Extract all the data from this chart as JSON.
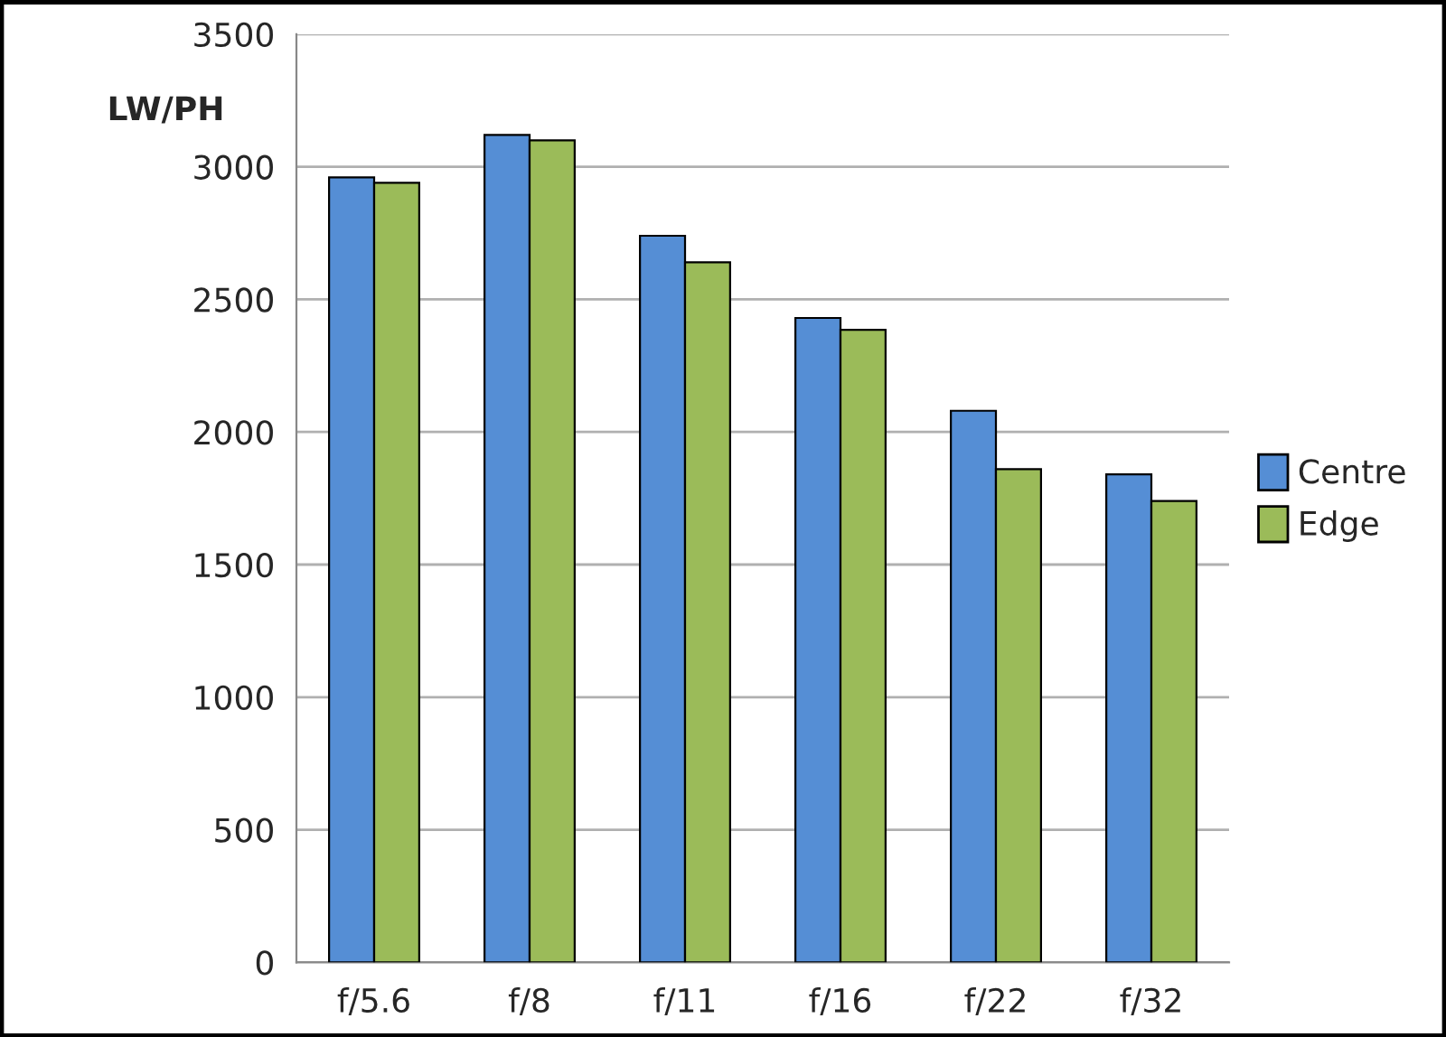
{
  "chart_data": {
    "type": "bar",
    "ylabel": "LW/PH",
    "categories": [
      "f/5.6",
      "f/8",
      "f/11",
      "f/16",
      "f/22",
      "f/32"
    ],
    "series": [
      {
        "name": "Centre",
        "color": "#558ed5",
        "values": [
          2960,
          3120,
          2740,
          2430,
          2080,
          1840
        ]
      },
      {
        "name": "Edge",
        "color": "#9bbb59",
        "values": [
          2940,
          3100,
          2640,
          2385,
          1860,
          1740
        ]
      }
    ],
    "ylim": [
      0,
      3500
    ],
    "yticks": [
      0,
      500,
      1000,
      1500,
      2000,
      2500,
      3000,
      3500
    ],
    "grid": "y",
    "legend": "right"
  }
}
